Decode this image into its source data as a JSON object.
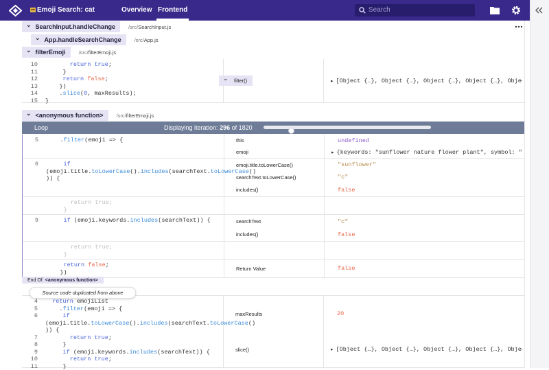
{
  "header": {
    "title": "Emoji Search: cat",
    "tabs": [
      "Overview",
      "Frontend"
    ],
    "active_tab": 1,
    "search_placeholder": "Search"
  },
  "frames": [
    {
      "name": "SearchInput.handleChange",
      "dir": "/src/",
      "file": "SearchInput.js"
    },
    {
      "name": "App.handleSearchChange",
      "dir": "/src/",
      "file": "App.js"
    },
    {
      "name": "filterEmoji",
      "dir": "/src/",
      "file": "filterEmoji.js"
    }
  ],
  "call_block": {
    "lines": [
      {
        "n": 10,
        "code": [
          [
            "       "
          ],
          [
            "return",
            "kw"
          ],
          [
            " "
          ],
          [
            "true",
            "kw"
          ],
          [
            ";"
          ]
        ]
      },
      {
        "n": 11,
        "code": [
          [
            "     }"
          ]
        ]
      },
      {
        "n": 12,
        "code": [
          [
            "     "
          ],
          [
            "return",
            "kw"
          ],
          [
            " "
          ],
          [
            "false",
            "bool"
          ],
          [
            ";"
          ]
        ]
      },
      {
        "n": 13,
        "code": [
          [
            "    })"
          ]
        ]
      },
      {
        "n": 14,
        "code": [
          [
            "    ."
          ],
          [
            "slice",
            "fn"
          ],
          [
            "("
          ],
          [
            "0",
            "num"
          ],
          [
            ", maxResults);"
          ]
        ]
      },
      {
        "n": 15,
        "code": [
          [
            "}"
          ]
        ]
      }
    ],
    "vars": [
      {
        "name": "filter()",
        "value": "[Object {…}, Object {…}, Object {…}, Object {…}, Object {…}]",
        "k": "obj"
      }
    ]
  },
  "loop_frame": {
    "name": "<anonymous function>",
    "dir": "/src/",
    "file": "filterEmoji.js"
  },
  "loop": {
    "label": "Loop",
    "iteration_prefix": "Displaying iteration:",
    "iteration": 296,
    "of": "of",
    "total": 1820
  },
  "loop_rows": [
    {
      "lines": [
        {
          "n": 5,
          "code": [
            [
              "    ."
            ],
            [
              "filter",
              "fn"
            ],
            [
              "(emoji => {"
            ]
          ]
        }
      ],
      "vars": [
        {
          "name": "this",
          "value": "undefined",
          "k": "undef"
        },
        {
          "name": "emoji",
          "value": "{keywords: \"sunflower nature flower plant\", symbol: \"🌻\", ti…",
          "k": "obj"
        }
      ]
    },
    {
      "lines": [
        {
          "n": 6,
          "code": [
            [
              "     "
            ],
            [
              "if",
              "kw"
            ]
          ]
        },
        {
          "code": [
            [
              "(emoji.title."
            ],
            [
              "toLowerCase",
              "fn"
            ],
            [
              "()."
            ],
            [
              "includes",
              "fn"
            ],
            [
              "(searchText."
            ],
            [
              "toLowerCase",
              "fn"
            ],
            [
              "()"
            ]
          ]
        },
        {
          "code": [
            [
              ")) {"
            ]
          ]
        }
      ],
      "vars": [
        {
          "name": "emoji.title.toLowerCase()",
          "value": "\"sunflower\"",
          "k": "str"
        },
        {
          "name": "searchText.toLowerCase()",
          "value": "\"c\"",
          "k": "str"
        },
        {
          "name": "includes()",
          "value": "false",
          "k": "bool"
        }
      ]
    },
    {
      "dim": true,
      "lines": [
        {
          "code": [
            [
              "       return true;"
            ]
          ]
        },
        {
          "code": [
            [
              "     }"
            ]
          ]
        }
      ]
    },
    {
      "lines": [
        {
          "n": 9,
          "code": [
            [
              "     "
            ],
            [
              "if",
              "kw"
            ],
            [
              " (emoji.keywords."
            ],
            [
              "includes",
              "fn"
            ],
            [
              "(searchText)) {"
            ]
          ]
        }
      ],
      "vars": [
        {
          "name": "searchText",
          "value": "\"c\"",
          "k": "str"
        },
        {
          "name": "includes()",
          "value": "false",
          "k": "bool"
        }
      ]
    },
    {
      "dim": true,
      "lines": [
        {
          "code": [
            [
              "       return true;"
            ]
          ]
        },
        {
          "code": [
            [
              "     }"
            ]
          ]
        }
      ]
    },
    {
      "lines": [
        {
          "code": [
            [
              "     "
            ],
            [
              "return",
              "kw"
            ],
            [
              " "
            ],
            [
              "false",
              "bool"
            ],
            [
              ";"
            ]
          ]
        },
        {
          "code": [
            [
              "    })"
            ]
          ]
        }
      ],
      "vars": [
        {
          "name": "Return Value",
          "value": "false",
          "k": "bool"
        }
      ]
    }
  ],
  "end_of": {
    "label": "End Of",
    "name": "<anonymous function>"
  },
  "duplicate_note": "Source code duplicated from above",
  "final_block": {
    "lines": [
      {
        "n": 4,
        "code": [
          [
            "  "
          ],
          [
            "return",
            "kw"
          ],
          [
            " emojiList"
          ]
        ]
      },
      {
        "n": 5,
        "code": [
          [
            "    ."
          ],
          [
            "filter",
            "fn"
          ],
          [
            "(emoji => {"
          ]
        ]
      },
      {
        "n": 6,
        "code": [
          [
            "     "
          ],
          [
            "if",
            "kw"
          ]
        ]
      },
      {
        "code": [
          [
            "(emoji.title."
          ],
          [
            "toLowerCase",
            "fn"
          ],
          [
            "()."
          ],
          [
            "includes",
            "fn"
          ],
          [
            "(searchText."
          ],
          [
            "toLowerCase",
            "fn"
          ],
          [
            "()"
          ]
        ]
      },
      {
        "code": [
          [
            ")) {"
          ]
        ]
      },
      {
        "n": 7,
        "code": [
          [
            "       "
          ],
          [
            "return",
            "kw"
          ],
          [
            " "
          ],
          [
            "true",
            "kw"
          ],
          [
            ";"
          ]
        ]
      },
      {
        "n": 8,
        "code": [
          [
            "     }"
          ]
        ]
      },
      {
        "n": 9,
        "code": [
          [
            "     "
          ],
          [
            "if",
            "kw"
          ],
          [
            " (emoji.keywords."
          ],
          [
            "includes",
            "fn"
          ],
          [
            "(searchText)) {"
          ]
        ]
      },
      {
        "n": 10,
        "code": [
          [
            "       "
          ],
          [
            "return",
            "kw"
          ],
          [
            " "
          ],
          [
            "true",
            "kw"
          ],
          [
            ";"
          ]
        ]
      },
      {
        "n": 11,
        "code": [
          [
            "     }"
          ]
        ]
      }
    ],
    "vars": [
      {
        "name": "maxResults",
        "value": 20,
        "k": "num"
      },
      {
        "name": "slice()",
        "value": "[Object {…}, Object {…}, Object {…}, Object {…}, Object {…}]",
        "k": "obj"
      }
    ]
  }
}
